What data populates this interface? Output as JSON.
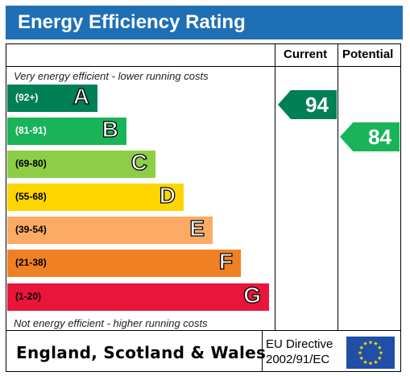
{
  "title": "Energy Efficiency Rating",
  "columns": {
    "current": "Current",
    "potential": "Potential"
  },
  "captions": {
    "top": "Very energy efficient - lower running costs",
    "bottom": "Not energy efficient - higher running costs"
  },
  "bands": [
    {
      "range": "(92+)",
      "letter": "A",
      "color": "#008054",
      "range_color": "#ffffff"
    },
    {
      "range": "(81-91)",
      "letter": "B",
      "color": "#19b459",
      "range_color": "#ffffff"
    },
    {
      "range": "(69-80)",
      "letter": "C",
      "color": "#8dce46",
      "range_color": "#000000"
    },
    {
      "range": "(55-68)",
      "letter": "D",
      "color": "#ffd500",
      "range_color": "#000000"
    },
    {
      "range": "(39-54)",
      "letter": "E",
      "color": "#fcaa65",
      "range_color": "#000000"
    },
    {
      "range": "(21-38)",
      "letter": "F",
      "color": "#ef8023",
      "range_color": "#000000"
    },
    {
      "range": "(1-20)",
      "letter": "G",
      "color": "#e9153b",
      "range_color": "#000000"
    }
  ],
  "current": {
    "value": "94",
    "band": "A",
    "color": "#008054"
  },
  "potential": {
    "value": "84",
    "band": "B",
    "color": "#19b459"
  },
  "footer": {
    "region": "England, Scotland & Wales",
    "directive_line1": "EU Directive",
    "directive_line2": "2002/91/EC"
  },
  "icons": {
    "eu_flag": "eu-flag-icon"
  }
}
